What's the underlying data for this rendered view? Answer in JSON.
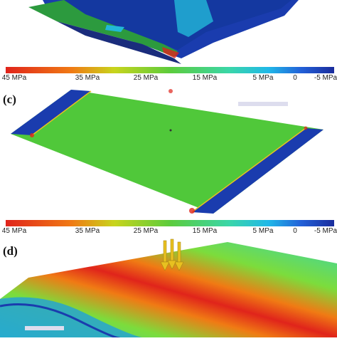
{
  "colorbars": [
    {
      "labels": [
        "45 MPa",
        "35 MPa",
        "25 MPa",
        "15 MPa",
        "5 MPa",
        "0",
        "-5 MPa"
      ]
    },
    {
      "labels": [
        "45 MPa",
        "35 MPa",
        "25 MPa",
        "15 MPa",
        "5 MPa",
        "0",
        "-5 MPa"
      ]
    }
  ],
  "panels": [
    {
      "label": "(c)"
    },
    {
      "label": "(d)"
    }
  ]
}
